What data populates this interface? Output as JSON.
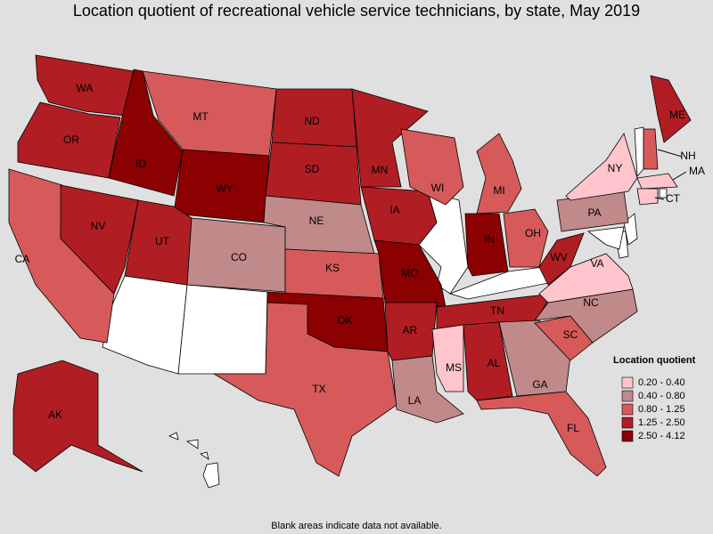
{
  "title": "Location quotient of recreational vehicle service technicians, by state, May 2019",
  "footnote": "Blank areas indicate data not available.",
  "legend": {
    "title": "Location quotient",
    "items": [
      {
        "label": "0.20 - 0.40",
        "color": "#ffc4cc"
      },
      {
        "label": "0.40 - 0.80",
        "color": "#c08a8a"
      },
      {
        "label": "0.80 - 1.25",
        "color": "#d65a5a"
      },
      {
        "label": "1.25 - 2.50",
        "color": "#b01e23"
      },
      {
        "label": "2.50 - 4.12",
        "color": "#8b0000"
      }
    ]
  },
  "states": [
    {
      "label": "WA",
      "color": "#b01e23"
    },
    {
      "label": "OR",
      "color": "#b01e23"
    },
    {
      "label": "CA",
      "color": "#d65a5a"
    },
    {
      "label": "NV",
      "color": "#b01e23"
    },
    {
      "label": "ID",
      "color": "#8b0000"
    },
    {
      "label": "MT",
      "color": "#d65a5a"
    },
    {
      "label": "WY",
      "color": "#8b0000"
    },
    {
      "label": "UT",
      "color": "#b01e23"
    },
    {
      "label": "CO",
      "color": "#c08a8a"
    },
    {
      "label": "ND",
      "color": "#b01e23"
    },
    {
      "label": "SD",
      "color": "#b01e23"
    },
    {
      "label": "NE",
      "color": "#c08a8a"
    },
    {
      "label": "KS",
      "color": "#d65a5a"
    },
    {
      "label": "OK",
      "color": "#8b0000"
    },
    {
      "label": "TX",
      "color": "#d65a5a"
    },
    {
      "label": "MN",
      "color": "#b01e23"
    },
    {
      "label": "IA",
      "color": "#b01e23"
    },
    {
      "label": "MO",
      "color": "#8b0000"
    },
    {
      "label": "AR",
      "color": "#b01e23"
    },
    {
      "label": "LA",
      "color": "#c08a8a"
    },
    {
      "label": "WI",
      "color": "#d65a5a"
    },
    {
      "label": "MI",
      "color": "#d65a5a"
    },
    {
      "label": "IN",
      "color": "#8b0000"
    },
    {
      "label": "OH",
      "color": "#d65a5a"
    },
    {
      "label": "TN",
      "color": "#b01e23"
    },
    {
      "label": "MS",
      "color": "#ffc4cc"
    },
    {
      "label": "AL",
      "color": "#b01e23"
    },
    {
      "label": "GA",
      "color": "#c08a8a"
    },
    {
      "label": "FL",
      "color": "#d65a5a"
    },
    {
      "label": "SC",
      "color": "#d65a5a"
    },
    {
      "label": "NC",
      "color": "#c08a8a"
    },
    {
      "label": "VA",
      "color": "#ffc4cc"
    },
    {
      "label": "WV",
      "color": "#b01e23"
    },
    {
      "label": "PA",
      "color": "#c08a8a"
    },
    {
      "label": "NY",
      "color": "#ffc4cc"
    },
    {
      "label": "ME",
      "color": "#b01e23"
    },
    {
      "label": "NH",
      "color": "#d65a5a"
    },
    {
      "label": "MA",
      "color": "#ffc4cc"
    },
    {
      "label": "CT",
      "color": "#ffc4cc"
    },
    {
      "label": "AK",
      "color": "#b01e23"
    }
  ]
}
